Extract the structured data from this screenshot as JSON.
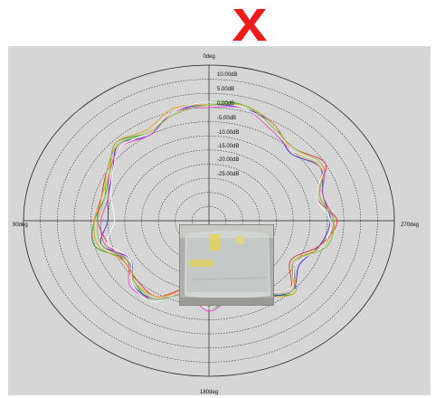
{
  "header": {
    "mark_icon": "red-x-mark",
    "mark_color": "#ee1c1c"
  },
  "panel": {
    "background": "#d6d6d6"
  },
  "chart_data": {
    "type": "line",
    "coordinate_system": "polar",
    "angle_labels": [
      "0deg",
      "90deg",
      "180deg",
      "270deg"
    ],
    "angle_direction": "counterclockwise from top",
    "radial_tick_labels": [
      "10.00dB",
      "5.00dB",
      "0.00dB",
      "-5.00dB",
      "-10.00dB",
      "-15.00dB",
      "-20.00dB",
      "-25.00dB"
    ],
    "radial_range_db": [
      -40,
      15
    ],
    "radial_step_db": 5,
    "grid": true,
    "theta_deg": [
      0,
      15,
      30,
      45,
      60,
      75,
      90,
      105,
      120,
      135,
      150,
      165,
      180,
      195,
      210,
      225,
      240,
      255,
      270,
      285,
      300,
      315,
      330,
      345
    ],
    "series": [
      {
        "color": "#22aa22",
        "values": [
          2,
          0,
          -4,
          -1,
          -6,
          -8,
          -6,
          -5,
          -12,
          -9,
          -7,
          -14,
          -9,
          -12,
          -10,
          -4,
          -11,
          -4,
          -3,
          -6,
          -1,
          -5,
          -2,
          2
        ]
      },
      {
        "color": "#3333dd",
        "values": [
          1,
          0,
          -5,
          -2,
          -7,
          -9,
          -10,
          -7,
          -13,
          -8,
          -8,
          -13,
          -10,
          -13,
          -9,
          -5,
          -9,
          -6,
          -4,
          -5,
          -2,
          -6,
          -1,
          1
        ]
      },
      {
        "color": "#dd3333",
        "values": [
          1,
          -1,
          -4,
          -2,
          -5,
          -7,
          -7,
          -9,
          -11,
          -10,
          -9,
          -15,
          -11,
          -11,
          -11,
          -6,
          -12,
          -6,
          -2,
          -7,
          0,
          -4,
          -2,
          2
        ]
      },
      {
        "color": "#ee44cc",
        "values": [
          0,
          0,
          -5,
          -3,
          -6,
          -9,
          -8,
          -8,
          -12,
          -7,
          -8,
          -13,
          -8,
          -12,
          -10,
          -5,
          -10,
          -5,
          -3,
          -5,
          -1,
          -5,
          -3,
          1
        ]
      },
      {
        "color": "#e8a020",
        "values": [
          1,
          1,
          -3,
          -1,
          -6,
          -7,
          -6,
          -6,
          -11,
          -9,
          -9,
          -14,
          -10,
          -12,
          -9,
          -4,
          -11,
          -5,
          -3,
          -6,
          -2,
          -5,
          -1,
          2
        ]
      },
      {
        "color": "#ffffff",
        "values": [
          2,
          0,
          -4,
          -3,
          -7,
          -10,
          -12,
          -9,
          -13,
          -8,
          -7,
          -14,
          -9,
          -13,
          -11,
          -6,
          -10,
          -5,
          -4,
          -7,
          -1,
          -5,
          -2,
          1
        ]
      },
      {
        "color": "#88cc44",
        "values": [
          1,
          -1,
          -4,
          -2,
          -5,
          -8,
          -7,
          -7,
          -12,
          -9,
          -8,
          -13,
          -10,
          -12,
          -10,
          -5,
          -11,
          -4,
          -3,
          -6,
          -1,
          -4,
          -2,
          2
        ]
      }
    ]
  }
}
